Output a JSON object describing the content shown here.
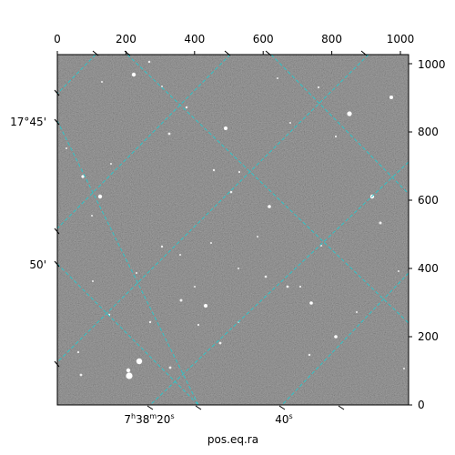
{
  "figure": {
    "xlabel": "pos.eq.ra",
    "top_ticks": [
      "0",
      "200",
      "400",
      "600",
      "800",
      "1000"
    ],
    "right_ticks": [
      "0",
      "200",
      "400",
      "600",
      "800",
      "1000"
    ],
    "left_ticks": [
      "17°45'",
      "50'"
    ],
    "bottom_ticks": [
      {
        "pre": "7",
        "s1": "h",
        "mid": "38",
        "s2": "m",
        "post": "20",
        "s3": "s"
      },
      {
        "pre": "40",
        "s1": "s"
      }
    ],
    "grid_color": "#2ec4c8",
    "image_kind": "grayscale astronomical star field with celestial coordinate grid"
  }
}
